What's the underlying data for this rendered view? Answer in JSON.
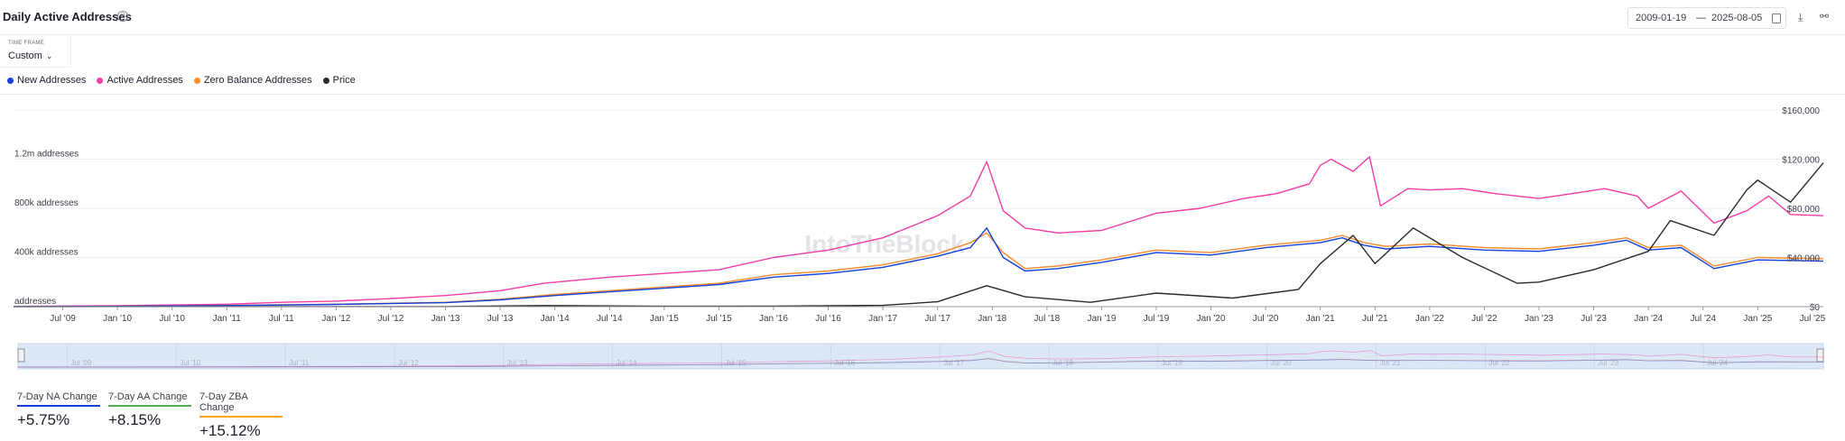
{
  "header": {
    "title": "Daily Active Addresses",
    "help_icon": "?",
    "date_from": "2009-01-19",
    "date_sep": "—",
    "date_to": "2025-08-05",
    "download_icon": "⤓",
    "link_icon": "⚯"
  },
  "timeframe": {
    "label": "TIME FRAME",
    "value": "Custom",
    "chevron": "⌄"
  },
  "legend": [
    {
      "label": "New Addresses",
      "color": "#1340d9"
    },
    {
      "label": "Active Addresses",
      "color": "#f23ca6"
    },
    {
      "label": "Zero Balance Addresses",
      "color": "#f58a2e"
    },
    {
      "label": "Price",
      "color": "#2a2a2a"
    }
  ],
  "stats": [
    {
      "label": "7-Day NA Change",
      "value": "+5.75%",
      "color": "#1340d9"
    },
    {
      "label": "7-Day AA Change",
      "value": "+8.15%",
      "color": "#4caf50"
    },
    {
      "label": "7-Day ZBA Change",
      "value": "+15.12%",
      "color": "#f5a623"
    }
  ],
  "chart_data": {
    "type": "line",
    "watermark": "IntoTheBlock",
    "x_ticks": [
      "Jul '09",
      "Jan '10",
      "Jul '10",
      "Jan '11",
      "Jul '11",
      "Jan '12",
      "Jul '12",
      "Jan '13",
      "Jul '13",
      "Jan '14",
      "Jul '14",
      "Jan '15",
      "Jul '15",
      "Jan '16",
      "Jul '16",
      "Jan '17",
      "Jul '17",
      "Jan '18",
      "Jul '18",
      "Jan '19",
      "Jul '19",
      "Jan '20",
      "Jul '20",
      "Jan '21",
      "Jul '21",
      "Jan '22",
      "Jul '22",
      "Jan '23",
      "Jul '23",
      "Jan '24",
      "Jul '24",
      "Jan '25",
      "Jul '25"
    ],
    "navigator_ticks": [
      "Jul '09",
      "Jul '10",
      "Jul '11",
      "Jul '12",
      "Jul '13",
      "Jul '14",
      "Jul '15",
      "Jul '16",
      "Jul '17",
      "Jul '18",
      "Jul '19",
      "Jul '20",
      "Jul '21",
      "Jul '22",
      "Jul '23",
      "Jul '24"
    ],
    "left_axis": {
      "ticks": [
        "addresses",
        "400k addresses",
        "800k addresses",
        "1.2m addresses"
      ],
      "values": [
        0,
        400000,
        800000,
        1200000
      ],
      "ylim": [
        0,
        1600000
      ]
    },
    "right_axis": {
      "ticks": [
        "$0",
        "$40,000",
        "$80,000",
        "$120,000",
        "$160,000"
      ],
      "values": [
        0,
        40000,
        80000,
        120000,
        160000
      ],
      "ylim": [
        0,
        160000
      ]
    },
    "x_range": [
      2009.05,
      2025.6
    ],
    "series": [
      {
        "name": "Active Addresses",
        "axis": "left",
        "color": "#f23ca6",
        "x": [
          2009.05,
          2010.0,
          2011.0,
          2011.5,
          2012.0,
          2012.5,
          2013.0,
          2013.5,
          2013.9,
          2014.5,
          2015.0,
          2015.5,
          2016.0,
          2016.5,
          2017.0,
          2017.5,
          2017.8,
          2017.95,
          2018.1,
          2018.3,
          2018.6,
          2019.0,
          2019.5,
          2019.9,
          2020.3,
          2020.6,
          2020.9,
          2021.0,
          2021.1,
          2021.3,
          2021.45,
          2021.55,
          2021.8,
          2022.0,
          2022.3,
          2022.6,
          2023.0,
          2023.3,
          2023.6,
          2023.9,
          2024.0,
          2024.3,
          2024.6,
          2024.9,
          2025.1,
          2025.3,
          2025.6
        ],
        "y": [
          2000,
          8000,
          20000,
          35000,
          45000,
          65000,
          90000,
          130000,
          190000,
          240000,
          270000,
          300000,
          400000,
          460000,
          560000,
          740000,
          900000,
          1180000,
          780000,
          640000,
          600000,
          620000,
          760000,
          800000,
          880000,
          920000,
          1000000,
          1150000,
          1200000,
          1100000,
          1220000,
          820000,
          960000,
          950000,
          960000,
          920000,
          880000,
          920000,
          960000,
          900000,
          800000,
          940000,
          680000,
          780000,
          900000,
          750000,
          740000
        ]
      },
      {
        "name": "Zero Balance Addresses",
        "axis": "left",
        "color": "#f58a2e",
        "x": [
          2009.05,
          2010.0,
          2011.0,
          2012.0,
          2013.0,
          2013.5,
          2014.0,
          2014.5,
          2015.0,
          2015.5,
          2016.0,
          2016.5,
          2017.0,
          2017.5,
          2017.8,
          2017.95,
          2018.1,
          2018.3,
          2018.6,
          2019.0,
          2019.5,
          2020.0,
          2020.5,
          2021.0,
          2021.2,
          2021.4,
          2021.6,
          2022.0,
          2022.5,
          2023.0,
          2023.5,
          2023.8,
          2024.0,
          2024.3,
          2024.6,
          2025.0,
          2025.6
        ],
        "y": [
          500,
          3000,
          10000,
          20000,
          35000,
          60000,
          100000,
          130000,
          160000,
          190000,
          260000,
          290000,
          340000,
          430000,
          520000,
          600000,
          440000,
          310000,
          330000,
          380000,
          460000,
          440000,
          500000,
          540000,
          580000,
          520000,
          490000,
          510000,
          480000,
          470000,
          520000,
          560000,
          480000,
          500000,
          330000,
          400000,
          390000
        ]
      },
      {
        "name": "New Addresses",
        "axis": "left",
        "color": "#1340d9",
        "x": [
          2009.05,
          2010.0,
          2011.0,
          2012.0,
          2013.0,
          2013.5,
          2014.0,
          2014.5,
          2015.0,
          2015.5,
          2016.0,
          2016.5,
          2017.0,
          2017.5,
          2017.8,
          2017.95,
          2018.1,
          2018.3,
          2018.6,
          2019.0,
          2019.5,
          2020.0,
          2020.5,
          2021.0,
          2021.2,
          2021.4,
          2021.6,
          2022.0,
          2022.5,
          2023.0,
          2023.5,
          2023.8,
          2024.0,
          2024.3,
          2024.6,
          2025.0,
          2025.6
        ],
        "y": [
          500,
          3000,
          9000,
          18000,
          32000,
          55000,
          90000,
          120000,
          150000,
          180000,
          240000,
          270000,
          320000,
          410000,
          480000,
          640000,
          400000,
          290000,
          310000,
          360000,
          440000,
          420000,
          480000,
          520000,
          560000,
          500000,
          470000,
          490000,
          460000,
          450000,
          500000,
          540000,
          460000,
          480000,
          310000,
          380000,
          370000
        ]
      },
      {
        "name": "Price",
        "axis": "right",
        "color": "#2a2a2a",
        "x": [
          2009.05,
          2013.0,
          2013.9,
          2014.5,
          2015.0,
          2016.0,
          2017.0,
          2017.5,
          2017.95,
          2018.3,
          2018.9,
          2019.5,
          2020.2,
          2020.8,
          2021.0,
          2021.3,
          2021.5,
          2021.85,
          2022.3,
          2022.8,
          2023.0,
          2023.5,
          2024.0,
          2024.2,
          2024.6,
          2024.9,
          2025.0,
          2025.3,
          2025.6
        ],
        "y": [
          0,
          100,
          900,
          600,
          300,
          400,
          1000,
          4000,
          17000,
          8000,
          3500,
          11000,
          7000,
          14000,
          35000,
          58000,
          35000,
          64000,
          40000,
          19000,
          20000,
          30000,
          45000,
          70000,
          58000,
          95000,
          103000,
          85000,
          117000
        ]
      }
    ]
  }
}
